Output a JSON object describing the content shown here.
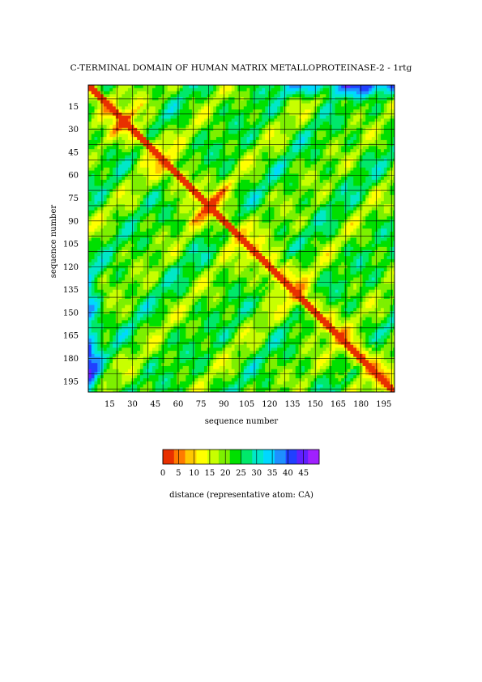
{
  "chart_data": {
    "type": "heatmap",
    "title": "C-TERMINAL DOMAIN OF HUMAN MATRIX METALLOPROTEINASE-2 - 1rtg",
    "xlabel": "sequence number",
    "ylabel": "sequence number",
    "x_ticks": [
      "15",
      "30",
      "45",
      "60",
      "75",
      "90",
      "105",
      "120",
      "135",
      "150",
      "165",
      "180",
      "195"
    ],
    "y_ticks": [
      "15",
      "30",
      "45",
      "60",
      "75",
      "90",
      "105",
      "120",
      "135",
      "150",
      "165",
      "180",
      "195"
    ],
    "xlim": [
      1,
      202
    ],
    "ylim": [
      1,
      202
    ],
    "grid": true,
    "diagonal": "distance 0 along the main diagonal",
    "notable_features": [
      {
        "description": "anti-diagonal red/yellow contacts",
        "near": [
          25,
          25
        ]
      },
      {
        "description": "anti-diagonal red/yellow contacts",
        "near": [
          80,
          80
        ]
      },
      {
        "description": "anti-diagonal red/yellow contacts",
        "near": [
          125,
          125
        ]
      },
      {
        "description": "anti-diagonal red/yellow contacts",
        "near": [
          180,
          180
        ]
      },
      {
        "description": "blue/purple high-distance region",
        "near": [
          1,
          190
        ]
      },
      {
        "description": "blue/purple high-distance region",
        "near": [
          1,
          130
        ]
      }
    ],
    "colorbar": {
      "label": "distance (representative atom: CA)",
      "ticks": [
        "0",
        "5",
        "10",
        "15",
        "20",
        "25",
        "30",
        "35",
        "40",
        "45"
      ],
      "range": [
        0,
        50
      ],
      "colors": [
        "#e83000",
        "#ff7a00",
        "#ffc800",
        "#ffff00",
        "#c8ff00",
        "#7df000",
        "#00e000",
        "#00e86a",
        "#00e8c8",
        "#00d8ff",
        "#1e90ff",
        "#2040ff",
        "#6020ff",
        "#a020ff"
      ]
    }
  }
}
